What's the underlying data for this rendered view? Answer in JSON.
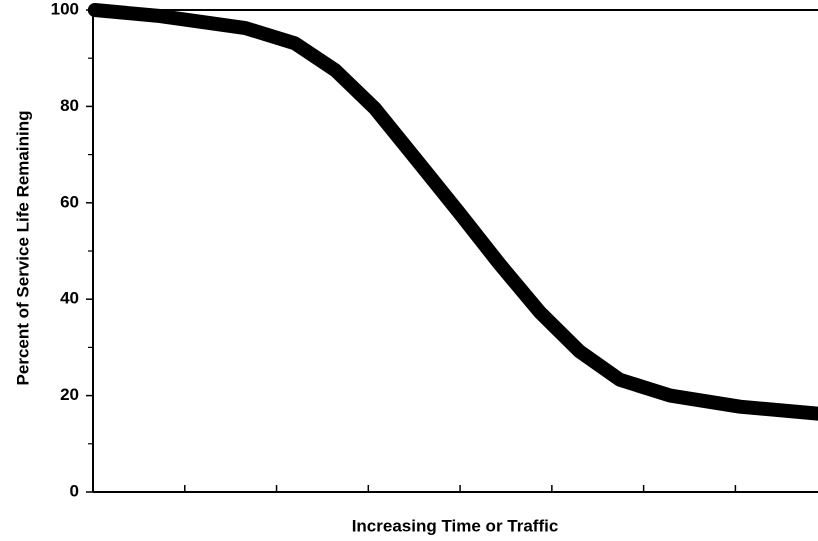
{
  "chart_data": {
    "type": "line",
    "x_label": "Increasing Time or Traffic",
    "y_label": "Percent of Service Life Remaining",
    "x": [
      0.02,
      0.73,
      1.66,
      2.2,
      2.64,
      3.07,
      3.56,
      4.0,
      4.43,
      4.87,
      5.3,
      5.74,
      6.29,
      7.05,
      7.9
    ],
    "series": [
      {
        "color": "#000000",
        "values": [
          100,
          98.75,
          96.25,
          93.1,
          87.5,
          79.6,
          68.1,
          57.7,
          47.3,
          37.3,
          29.2,
          23.3,
          20,
          17.7,
          16.25
        ]
      }
    ],
    "xlim": [
      0,
      7.9
    ],
    "xticks": [
      1,
      2,
      3,
      4,
      5,
      6,
      7
    ],
    "ylim": [
      0,
      100
    ],
    "yticks": [
      0,
      20,
      40,
      60,
      80,
      100
    ],
    "yminor_ticks": [
      10,
      30,
      50,
      70,
      90
    ]
  }
}
